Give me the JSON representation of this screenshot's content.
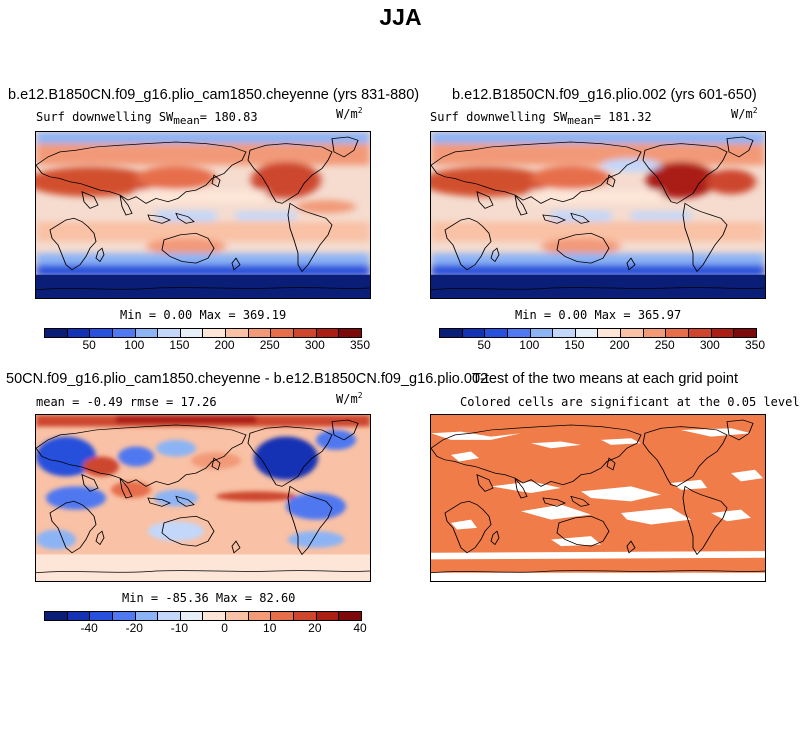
{
  "main_title": "JJA",
  "panels": {
    "top_left": {
      "title": "b.e12.B1850CN.f09_g16.plio_cam1850.cheyenne (yrs 831-880)",
      "field_label": "Surf downwelling SW",
      "mean_word": "mean",
      "mean_value": "= 180.83",
      "units": "W/m",
      "units_exp": "2",
      "minmax": "Min =    0.00 Max = 369.19"
    },
    "top_right": {
      "title": "b.e12.B1850CN.f09_g16.plio.002 (yrs 601-650)",
      "field_label": "Surf downwelling SW",
      "mean_word": "mean",
      "mean_value": "= 181.32",
      "units": "W/m",
      "units_exp": "2",
      "minmax": "Min =    0.00 Max = 365.97"
    },
    "bottom_left": {
      "title": "50CN.f09_g16.plio_cam1850.cheyenne - b.e12.B1850CN.f09_g16.plio.002",
      "stats": "mean =   -0.49    rmse =   17.26",
      "units": "W/m",
      "units_exp": "2",
      "minmax": "Min = -85.36 Max =  82.60"
    },
    "bottom_right": {
      "title": "T-test of the two means at each grid point",
      "subtitle": "Colored cells are significant at the 0.05 level"
    }
  },
  "colorbars": {
    "abs": {
      "colors": [
        "#0a1e78",
        "#1432b4",
        "#2850dc",
        "#5078f0",
        "#8cb4f5",
        "#c3d7fa",
        "#e6eef8",
        "#fde6d8",
        "#f9c1a5",
        "#f29a78",
        "#e66e4b",
        "#cd462d",
        "#aa1e14",
        "#7d0a0a"
      ],
      "ticks": [
        "50",
        "100",
        "150",
        "200",
        "250",
        "300",
        "350"
      ]
    },
    "diff": {
      "colors": [
        "#0a1e78",
        "#1432b4",
        "#2850dc",
        "#5078f0",
        "#8cb4f5",
        "#c3d7fa",
        "#e6eef8",
        "#fde6d8",
        "#f9c1a5",
        "#f29a78",
        "#e66e4b",
        "#cd462d",
        "#aa1e14",
        "#7d0a0a"
      ],
      "ticks": [
        "-40",
        "-20",
        "-10",
        "0",
        "10",
        "20",
        "40"
      ]
    }
  },
  "colors": {
    "significance": "#f07c4a",
    "not_significant": "#ffffff"
  }
}
